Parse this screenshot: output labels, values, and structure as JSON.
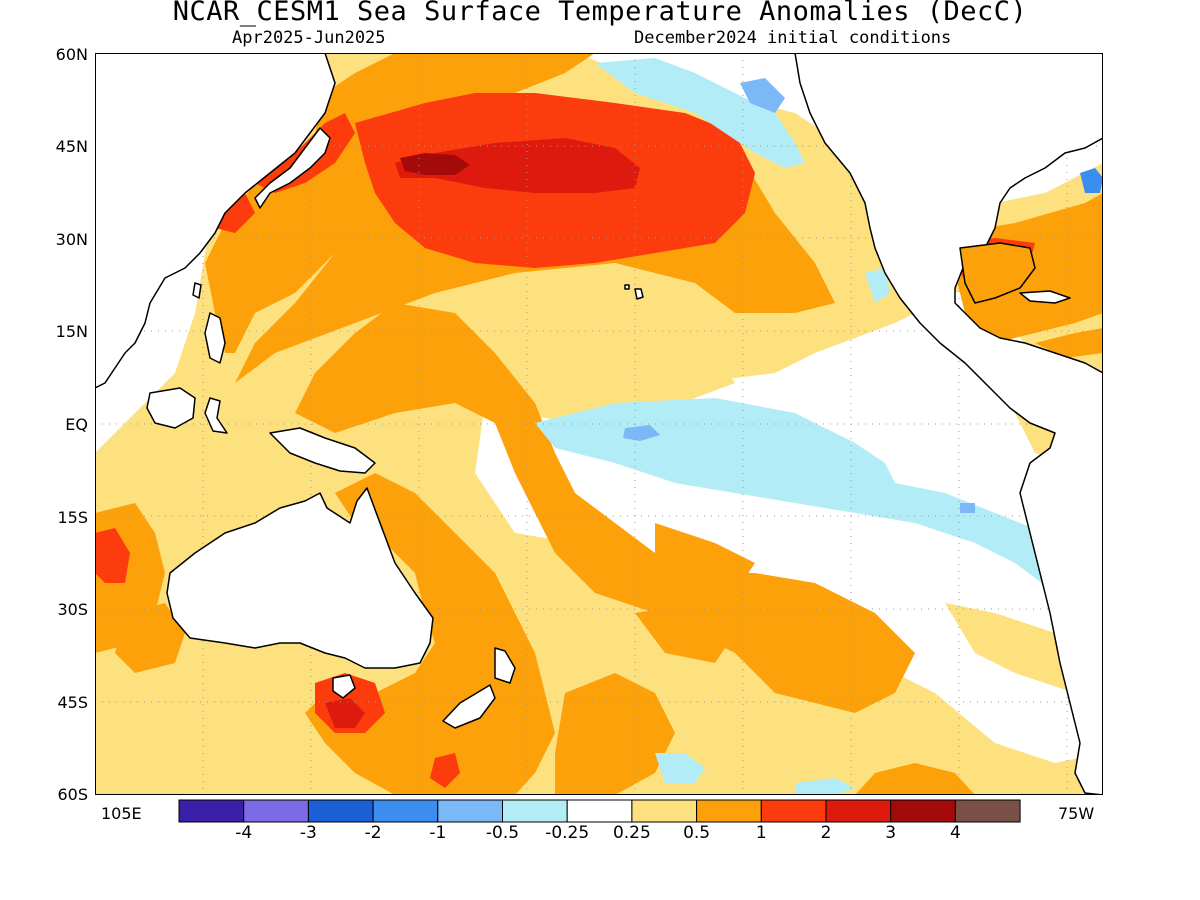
{
  "title": "NCAR_CESM1 Sea Surface Temperature Anomalies (DecC)",
  "period": "Apr2025-Jun2025",
  "init": "December2024 initial conditions",
  "lat_labels": [
    "60N",
    "45N",
    "30N",
    "15N",
    "EQ",
    "15S",
    "30S",
    "45S",
    "60S"
  ],
  "lon_labels": {
    "left": "105E",
    "right": "75W"
  },
  "legend": {
    "colors": [
      "#3c1fa8",
      "#7b6ce6",
      "#1a5fd6",
      "#3b8ef0",
      "#7ab8f6",
      "#b2ecf6",
      "#ffffff",
      "#fde17f",
      "#fca10a",
      "#fc3c0c",
      "#de1a0e",
      "#a50a0a",
      "#7a4f48"
    ],
    "tick_labels": [
      "-4",
      "-3",
      "-2",
      "-1",
      "-0.5",
      "-0.25",
      "0.25",
      "0.5",
      "1",
      "2",
      "3",
      "4"
    ]
  }
}
